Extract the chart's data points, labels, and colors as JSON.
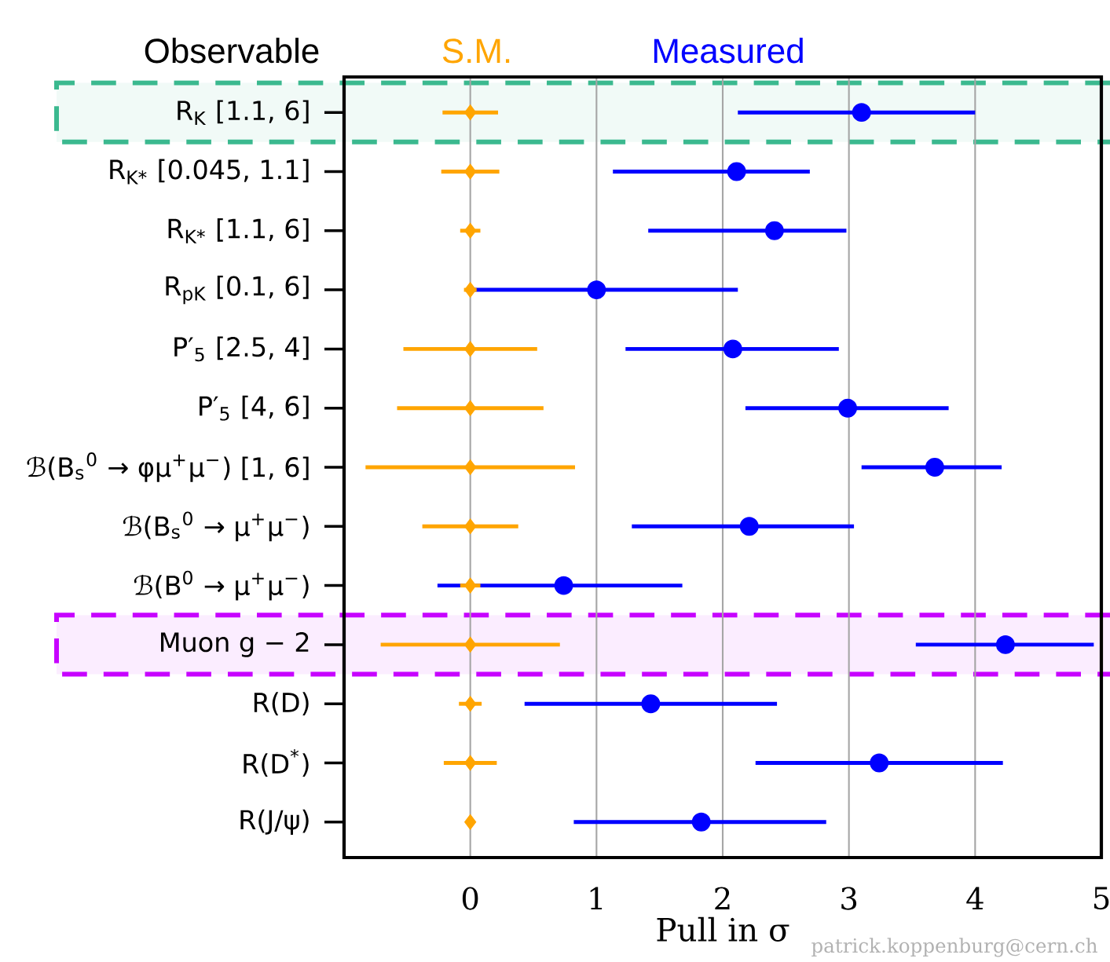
{
  "chart_data": {
    "type": "scatter",
    "orientation": "horizontal",
    "xlabel": "Pull in σ",
    "ylabel": "Observable",
    "categories": [
      "R$_{K}$ [1.1, 6]",
      "R$_{K*}$ [0.045, 1.1]",
      "R$_{K*}$ [1.1, 6]",
      "R$_{pK}$ [0.1, 6]",
      "P′$_{5}$ [2.5, 4]",
      "P′$_{5}$ [4, 6]",
      "ℬ(B$_{s}$$^{0}$ → φμ$^{+}$μ$^{−}$) [1, 6]",
      "ℬ(B$_{s}$$^{0}$ → μ$^{+}$μ$^{−}$)",
      "ℬ(B$^{0}$ → μ$^{+}$μ$^{−}$)",
      "Muon g − 2",
      "R(D)",
      "R(D$^{*}$)",
      "R(J/ψ)"
    ],
    "series": [
      {
        "name": "S.M.",
        "color": "#ffa500",
        "marker": "diamond",
        "values": [
          0,
          0,
          0,
          0,
          0,
          0,
          0,
          0,
          0,
          0,
          0,
          0,
          0
        ],
        "errors": [
          0.22,
          0.23,
          0.08,
          0.05,
          0.53,
          0.58,
          0.83,
          0.38,
          0.08,
          0.71,
          0.09,
          0.21,
          null
        ]
      },
      {
        "name": "Measured",
        "color": "#0000ff",
        "marker": "circle",
        "values": [
          3.1,
          2.11,
          2.41,
          1.0,
          2.08,
          2.99,
          3.68,
          2.21,
          0.74,
          4.24,
          1.43,
          3.24,
          1.83
        ],
        "errors": [
          [
            2.12,
            4.0
          ],
          [
            1.13,
            2.69
          ],
          [
            1.41,
            2.98
          ],
          [
            0.03,
            2.12
          ],
          [
            1.23,
            2.92
          ],
          [
            2.18,
            3.79
          ],
          [
            3.1,
            4.21
          ],
          [
            1.28,
            3.04
          ],
          [
            -0.26,
            1.68
          ],
          [
            3.53,
            4.94
          ],
          [
            0.43,
            2.43
          ],
          [
            2.26,
            4.22
          ],
          [
            0.82,
            2.82
          ]
        ]
      }
    ],
    "xlim": [
      -1,
      5
    ],
    "xticks": [
      0,
      1,
      2,
      3,
      4,
      5
    ],
    "grid": "x",
    "bands": [
      {
        "axis": "y",
        "from": "R$_{K}$ [1.1, 6]",
        "to": "R$_{K}$ [1.1, 6]",
        "color": "#f1faf7"
      },
      {
        "axis": "y",
        "from": "Muon g − 2",
        "to": "Muon g − 2",
        "color": "#fbedff"
      }
    ],
    "annotations": [
      "patrick.koppenburg@cern.ch"
    ]
  }
}
